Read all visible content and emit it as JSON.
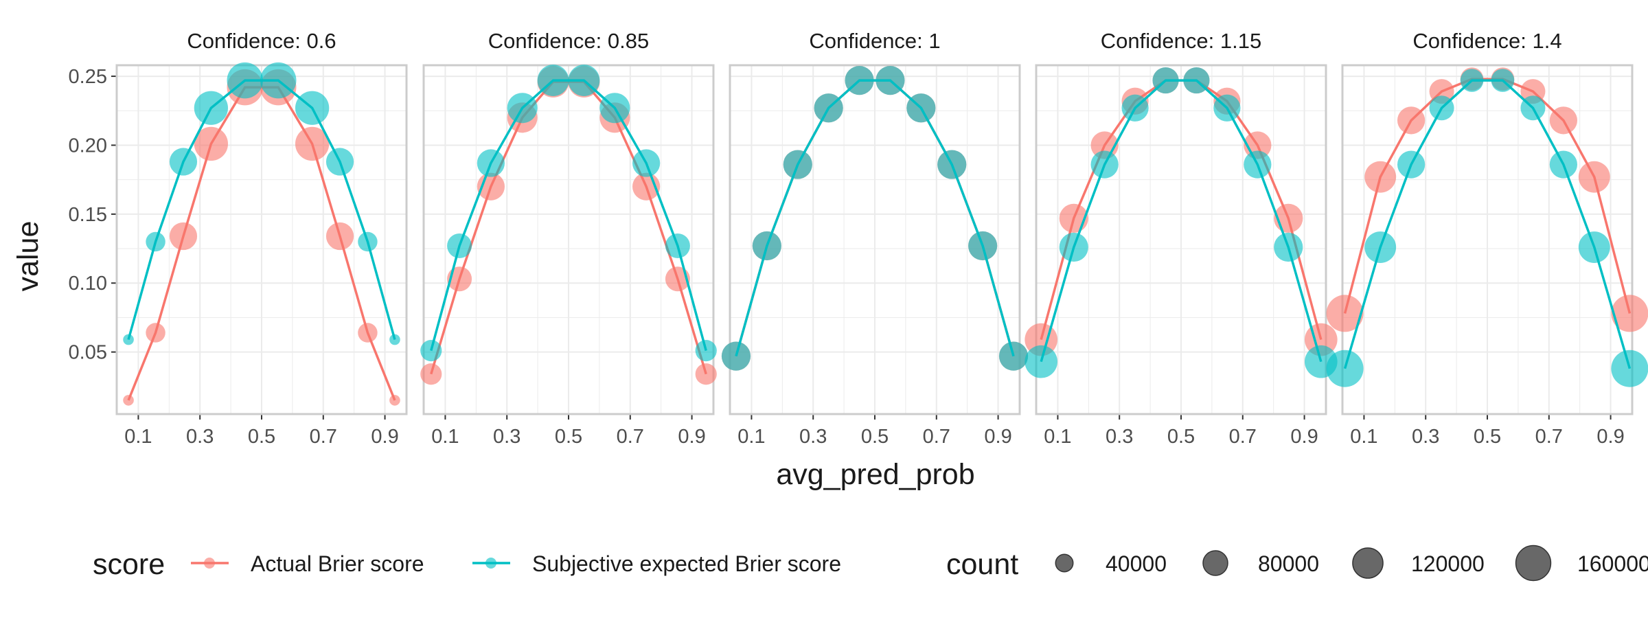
{
  "colors": {
    "actual": "#F8766D",
    "subjective": "#00BFC4",
    "grid": "#ebebeb",
    "panel_border": "#cccccc",
    "size_legend": "#4d4d4d"
  },
  "chart_data": {
    "type": "scatter",
    "facet_label_prefix": "Confidence: ",
    "xlabel": "avg_pred_prob",
    "ylabel": "value",
    "xlim": [
      0.03,
      0.97
    ],
    "ylim": [
      0.005,
      0.258
    ],
    "x_ticks": [
      "0.1",
      "0.3",
      "0.5",
      "0.7",
      "0.9"
    ],
    "y_ticks": [
      "0.05",
      "0.10",
      "0.15",
      "0.20",
      "0.25"
    ],
    "grid": true,
    "legend_position": "bottom",
    "legend_color_title": "score",
    "legend_size_title": "count",
    "size_legend_values": [
      "40000",
      "80000",
      "120000",
      "160000"
    ],
    "series_names": [
      "Actual Brier score",
      "Subjective expected Brier score"
    ],
    "panels": [
      {
        "confidence": "0.6",
        "x": [
          0.068,
          0.156,
          0.246,
          0.336,
          0.446,
          0.554,
          0.664,
          0.754,
          0.844,
          0.932
        ],
        "actual": [
          0.015,
          0.064,
          0.134,
          0.201,
          0.242,
          0.242,
          0.201,
          0.134,
          0.064,
          0.015
        ],
        "subjective": [
          0.059,
          0.13,
          0.188,
          0.227,
          0.247,
          0.247,
          0.227,
          0.188,
          0.13,
          0.059
        ],
        "counts": [
          15000,
          50000,
          100000,
          150000,
          170000,
          170000,
          150000,
          100000,
          50000,
          15000
        ]
      },
      {
        "confidence": "0.85",
        "x": [
          0.054,
          0.146,
          0.248,
          0.35,
          0.45,
          0.55,
          0.65,
          0.752,
          0.854,
          0.946
        ],
        "actual": [
          0.034,
          0.103,
          0.17,
          0.22,
          0.246,
          0.246,
          0.22,
          0.17,
          0.103,
          0.034
        ],
        "subjective": [
          0.051,
          0.127,
          0.187,
          0.227,
          0.247,
          0.247,
          0.227,
          0.187,
          0.127,
          0.051
        ],
        "counts": [
          60000,
          80000,
          100000,
          120000,
          130000,
          130000,
          120000,
          100000,
          80000,
          60000
        ]
      },
      {
        "confidence": "1",
        "x": [
          0.05,
          0.15,
          0.25,
          0.35,
          0.45,
          0.55,
          0.65,
          0.75,
          0.85,
          0.95
        ],
        "actual": [
          0.047,
          0.127,
          0.186,
          0.227,
          0.247,
          0.247,
          0.227,
          0.186,
          0.127,
          0.047
        ],
        "subjective": [
          0.047,
          0.127,
          0.186,
          0.227,
          0.247,
          0.247,
          0.227,
          0.186,
          0.127,
          0.047
        ],
        "counts": [
          110000,
          110000,
          110000,
          110000,
          110000,
          110000,
          110000,
          110000,
          110000,
          110000
        ]
      },
      {
        "confidence": "1.15",
        "x": [
          0.046,
          0.152,
          0.252,
          0.351,
          0.45,
          0.55,
          0.649,
          0.748,
          0.848,
          0.954
        ],
        "actual": [
          0.059,
          0.147,
          0.2,
          0.232,
          0.247,
          0.247,
          0.232,
          0.2,
          0.147,
          0.059
        ],
        "subjective": [
          0.043,
          0.126,
          0.186,
          0.227,
          0.247,
          0.247,
          0.227,
          0.186,
          0.126,
          0.043
        ],
        "counts": [
          140000,
          110000,
          100000,
          95000,
          90000,
          90000,
          95000,
          100000,
          110000,
          140000
        ]
      },
      {
        "confidence": "1.4",
        "x": [
          0.038,
          0.153,
          0.253,
          0.352,
          0.45,
          0.55,
          0.648,
          0.747,
          0.847,
          0.962
        ],
        "actual": [
          0.078,
          0.177,
          0.218,
          0.239,
          0.248,
          0.248,
          0.239,
          0.218,
          0.177,
          0.078
        ],
        "subjective": [
          0.038,
          0.126,
          0.186,
          0.227,
          0.247,
          0.247,
          0.227,
          0.186,
          0.126,
          0.038
        ],
        "counts": [
          180000,
          130000,
          100000,
          80000,
          70000,
          70000,
          80000,
          100000,
          130000,
          180000
        ]
      }
    ]
  }
}
